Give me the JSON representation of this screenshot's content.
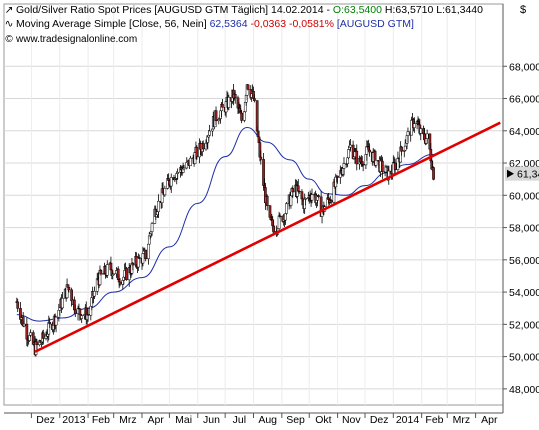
{
  "legend": {
    "line1_symbol": "Gold/Silver Ratio Spot Prices [AUGUSD GTM",
    "line1_period": "Täglich]",
    "line1_date": "14.02.2014",
    "line1_open": "O:63,5400",
    "line1_high": "H:63,5710",
    "line1_low": "L:61,3440",
    "line2_name": "Moving Average Simple [Close, 56, Nein]",
    "line2_value": "62,5364",
    "line2_change": "-0,0363",
    "line2_pct": "-0,0581%",
    "line2_symbol": "[AUGUSD GTM]",
    "source": "www.tradesignalonline.com"
  },
  "currency": "$",
  "colors": {
    "candle_up": "#ffffff",
    "candle_down": "#9a1f1f",
    "candle_outline": "#000000",
    "moving_average": "#1f2fa8",
    "trendline": "#e00000",
    "last_price_bg": "#d9d9d9"
  },
  "icons": {
    "line1": "trend-glyph",
    "line2": "wave-glyph",
    "line3": "copyright-glyph"
  },
  "chart_data": {
    "type": "candlestick",
    "y_axis": {
      "min": 47,
      "max": 70,
      "ticks": [
        "68,000",
        "66,000",
        "64,000",
        "62,000",
        "60,000",
        "58,000",
        "56,000",
        "54,000",
        "52,000",
        "50,000",
        "48,000"
      ],
      "position": "right",
      "grid": true
    },
    "x_axis": {
      "labels": [
        "Dez",
        "2013",
        "Feb",
        "Mrz",
        "Apr",
        "Mai",
        "Jun",
        "Jul",
        "Aug",
        "Sep",
        "Okt",
        "Nov",
        "Dez",
        "2014",
        "Feb",
        "Mrz",
        "Apr"
      ],
      "grid": true
    },
    "last_price_label": "61,34",
    "series": [
      {
        "name": "Gold/Silver Ratio Spot Prices",
        "type": "candlestick",
        "close_points": [
          [
            "2012-11-15",
            53.4
          ],
          [
            "2012-11-25",
            51.6
          ],
          [
            "2012-12-05",
            50.5
          ],
          [
            "2012-12-15",
            51.2
          ],
          [
            "2012-12-28",
            52.5
          ],
          [
            "2013-01-10",
            54.3
          ],
          [
            "2013-01-20",
            52.8
          ],
          [
            "2013-02-01",
            52.6
          ],
          [
            "2013-02-12",
            54.8
          ],
          [
            "2013-02-25",
            55.5
          ],
          [
            "2013-03-10",
            54.8
          ],
          [
            "2013-03-25",
            55.8
          ],
          [
            "2013-04-05",
            56.3
          ],
          [
            "2013-04-15",
            59.0
          ],
          [
            "2013-04-25",
            60.2
          ],
          [
            "2013-05-05",
            61.3
          ],
          [
            "2013-05-20",
            61.8
          ],
          [
            "2013-06-05",
            63.0
          ],
          [
            "2013-06-20",
            64.8
          ],
          [
            "2013-07-01",
            65.5
          ],
          [
            "2013-07-10",
            66.2
          ],
          [
            "2013-07-20",
            64.5
          ],
          [
            "2013-07-25",
            67.0
          ],
          [
            "2013-08-01",
            66.0
          ],
          [
            "2013-08-10",
            61.5
          ],
          [
            "2013-08-18",
            58.3
          ],
          [
            "2013-08-25",
            58.0
          ],
          [
            "2013-09-05",
            59.0
          ],
          [
            "2013-09-15",
            60.5
          ],
          [
            "2013-09-25",
            59.5
          ],
          [
            "2013-10-05",
            60.2
          ],
          [
            "2013-10-15",
            59.0
          ],
          [
            "2013-10-25",
            60.0
          ],
          [
            "2013-11-05",
            61.5
          ],
          [
            "2013-11-15",
            63.0
          ],
          [
            "2013-11-25",
            62.0
          ],
          [
            "2013-12-05",
            62.8
          ],
          [
            "2013-12-15",
            62.0
          ],
          [
            "2013-12-28",
            61.2
          ],
          [
            "2014-01-08",
            62.5
          ],
          [
            "2014-01-18",
            63.8
          ],
          [
            "2014-01-25",
            64.8
          ],
          [
            "2014-02-01",
            63.6
          ],
          [
            "2014-02-08",
            63.5
          ],
          [
            "2014-02-14",
            61.34
          ]
        ]
      },
      {
        "name": "Moving Average Simple [Close, 56, Nein]",
        "type": "line",
        "points": [
          [
            "2012-11-15",
            52.6
          ],
          [
            "2012-12-10",
            52.2
          ],
          [
            "2013-01-05",
            52.4
          ],
          [
            "2013-02-01",
            53.0
          ],
          [
            "2013-03-01",
            54.0
          ],
          [
            "2013-04-01",
            54.9
          ],
          [
            "2013-05-01",
            56.8
          ],
          [
            "2013-06-01",
            59.5
          ],
          [
            "2013-07-01",
            62.4
          ],
          [
            "2013-07-25",
            64.2
          ],
          [
            "2013-08-15",
            63.3
          ],
          [
            "2013-09-10",
            62.2
          ],
          [
            "2013-10-01",
            61.0
          ],
          [
            "2013-10-20",
            60.1
          ],
          [
            "2013-11-10",
            60.0
          ],
          [
            "2013-12-01",
            60.6
          ],
          [
            "2013-12-25",
            61.4
          ],
          [
            "2014-01-15",
            61.9
          ],
          [
            "2014-02-14",
            62.54
          ]
        ]
      },
      {
        "name": "trendline",
        "type": "line",
        "points": [
          [
            "2012-12-05",
            50.3
          ],
          [
            "2014-04-28",
            64.5
          ]
        ]
      }
    ]
  }
}
